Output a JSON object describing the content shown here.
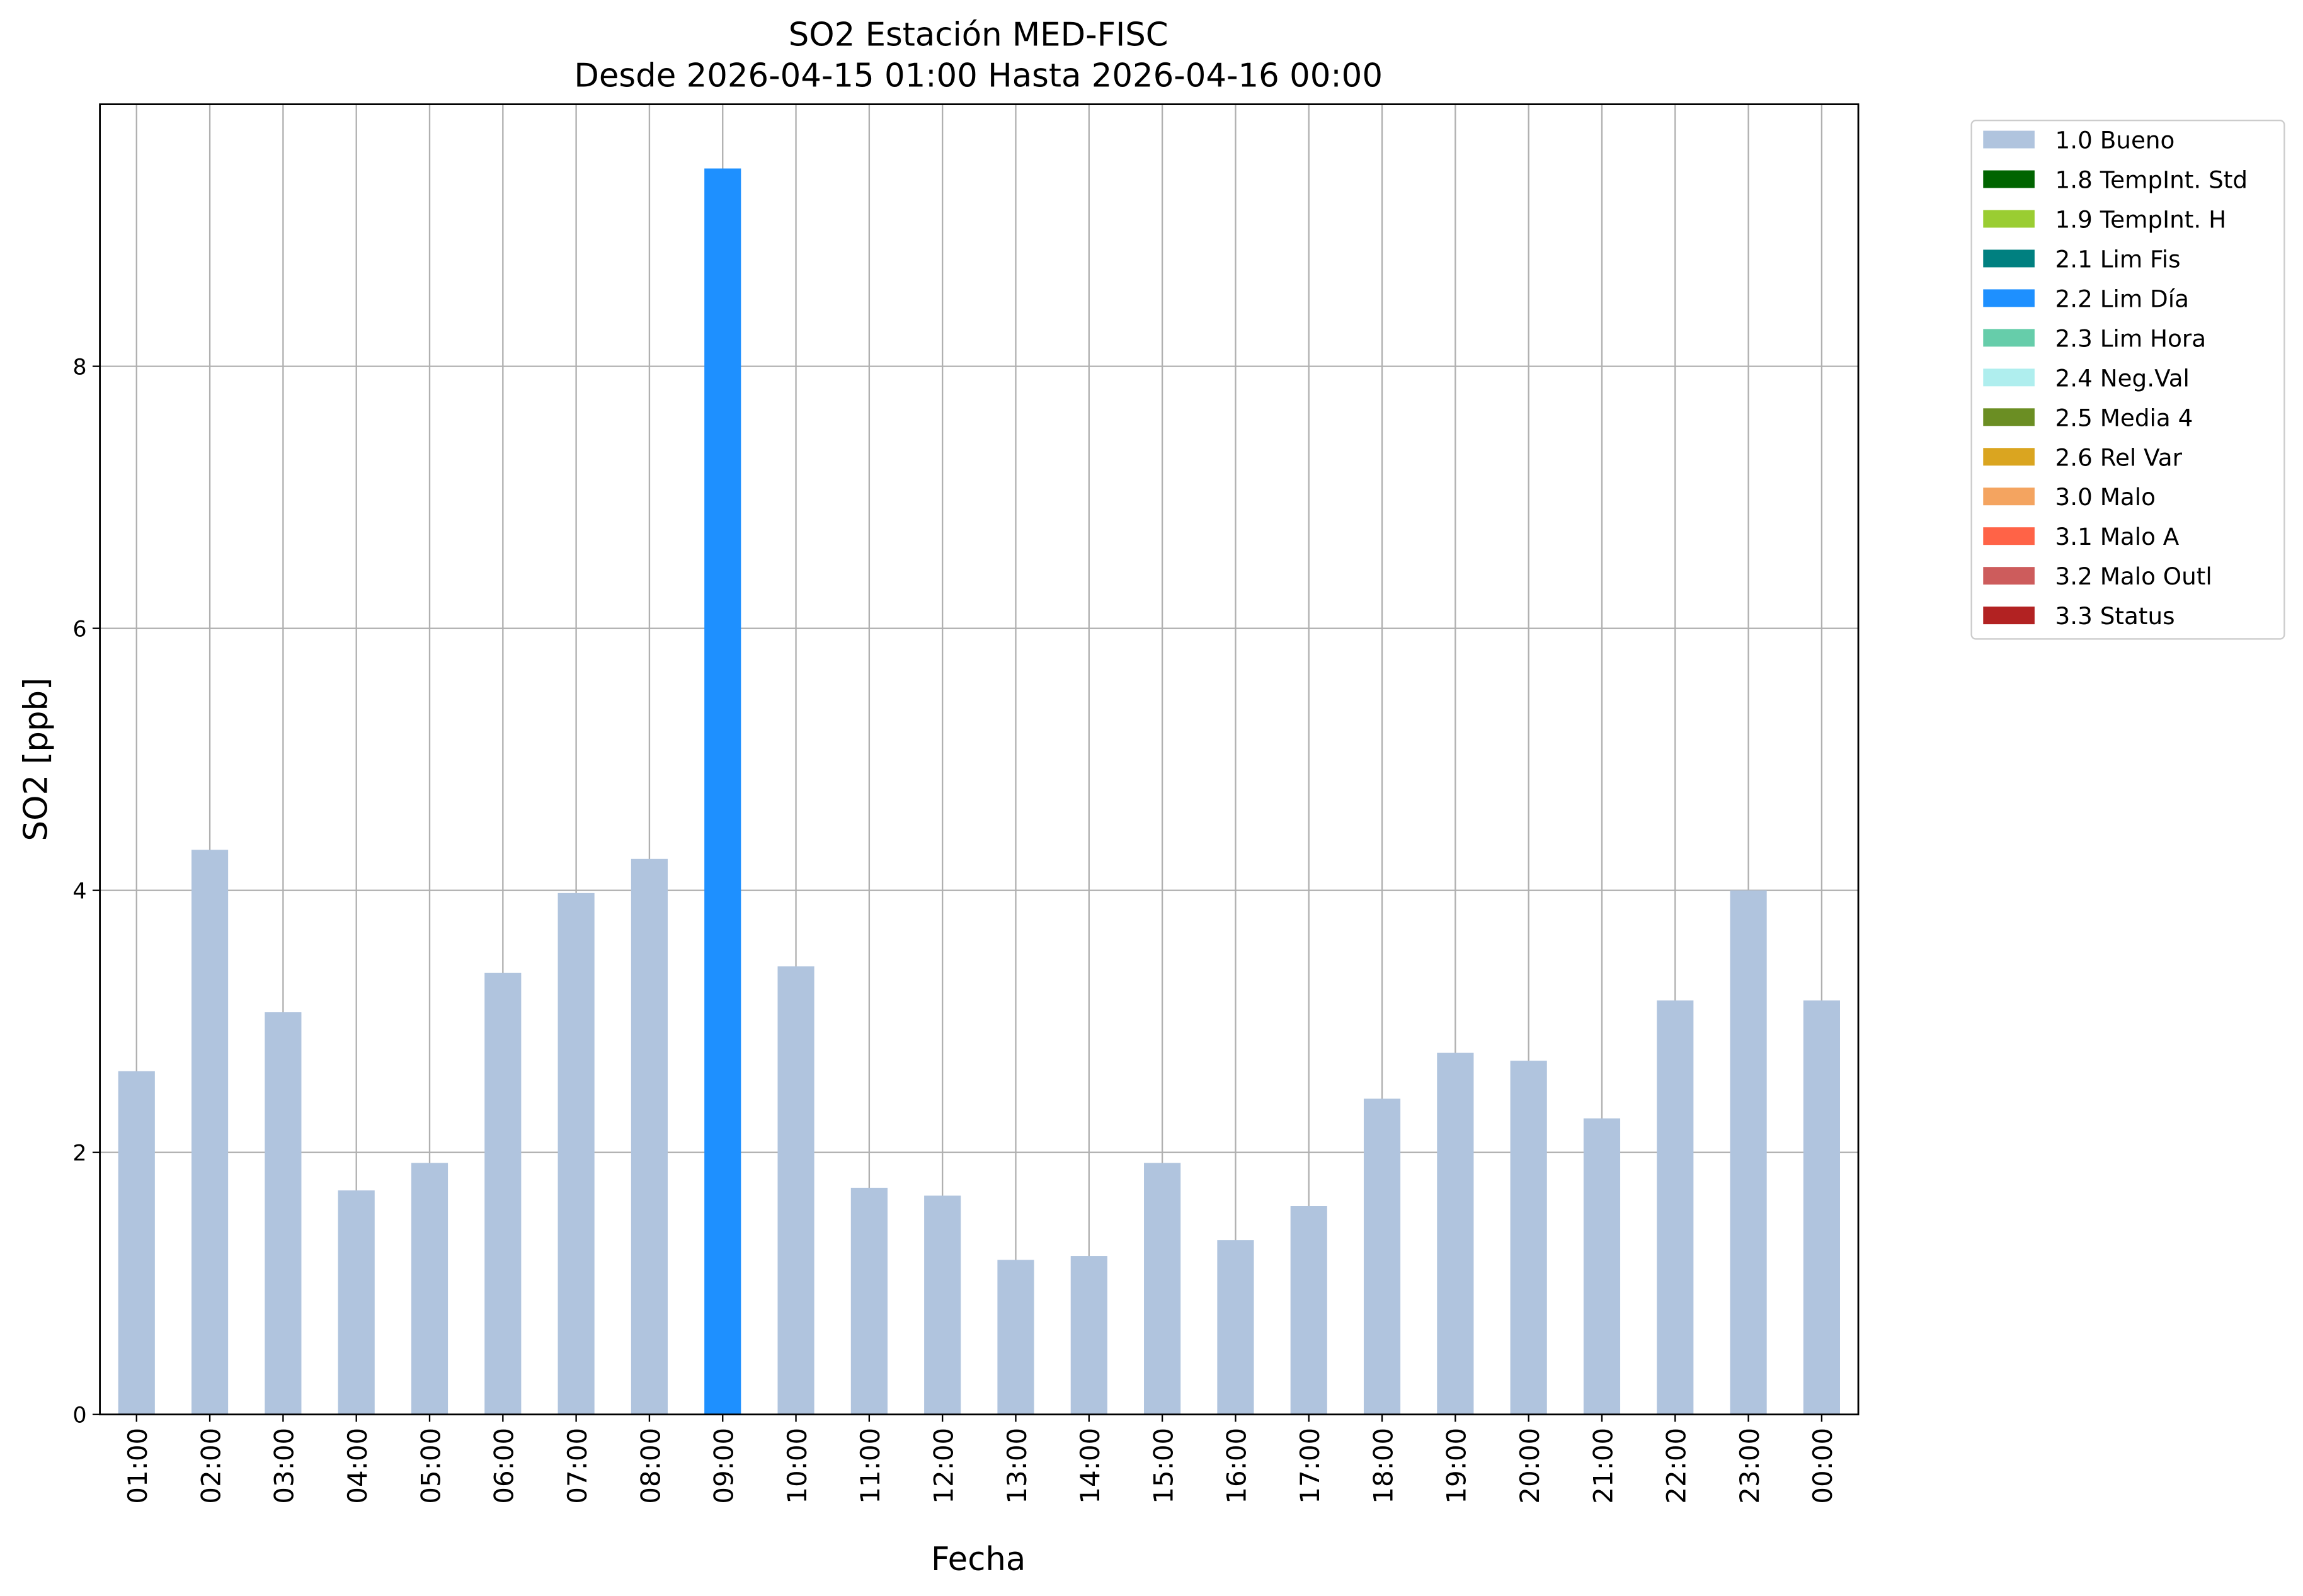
{
  "chart_data": {
    "type": "bar",
    "stacked": true,
    "title": "SO2 Estación MED-FISC",
    "subtitle": "Desde 2026-04-15 01:00 Hasta 2026-04-16 00:00",
    "x_label": "Fecha",
    "y_label": "SO2 [ppb]",
    "categories": [
      "01:00",
      "02:00",
      "03:00",
      "04:00",
      "05:00",
      "06:00",
      "07:00",
      "08:00",
      "09:00",
      "10:00",
      "11:00",
      "12:00",
      "13:00",
      "14:00",
      "15:00",
      "16:00",
      "17:00",
      "18:00",
      "19:00",
      "20:00",
      "21:00",
      "22:00",
      "23:00",
      "00:00"
    ],
    "series": [
      {
        "name": "1.0 Bueno",
        "color": "#b0c4de",
        "values": [
          2.62,
          4.31,
          3.07,
          1.71,
          1.92,
          3.37,
          3.98,
          4.24,
          null,
          3.42,
          1.73,
          1.67,
          1.18,
          1.21,
          1.92,
          1.33,
          1.59,
          2.41,
          2.76,
          2.7,
          2.26,
          3.16,
          4.0,
          3.16
        ]
      },
      {
        "name": "1.8 TempInt. Std",
        "color": "#006400",
        "values": [
          null,
          null,
          null,
          null,
          null,
          null,
          null,
          null,
          null,
          null,
          null,
          null,
          null,
          null,
          null,
          null,
          null,
          null,
          null,
          null,
          null,
          null,
          null,
          null
        ]
      },
      {
        "name": "1.9 TempInt. H",
        "color": "#9acd32",
        "values": [
          null,
          null,
          null,
          null,
          null,
          null,
          null,
          null,
          null,
          null,
          null,
          null,
          null,
          null,
          null,
          null,
          null,
          null,
          null,
          null,
          null,
          null,
          null,
          null
        ]
      },
      {
        "name": "2.1 Lim Fis",
        "color": "#008080",
        "values": [
          null,
          null,
          null,
          null,
          null,
          null,
          null,
          null,
          null,
          null,
          null,
          null,
          null,
          null,
          null,
          null,
          null,
          null,
          null,
          null,
          null,
          null,
          null,
          null
        ]
      },
      {
        "name": "2.2 Lim Día",
        "color": "#1e90ff",
        "values": [
          null,
          null,
          null,
          null,
          null,
          null,
          null,
          null,
          9.51,
          null,
          null,
          null,
          null,
          null,
          null,
          null,
          null,
          null,
          null,
          null,
          null,
          null,
          null,
          null
        ]
      },
      {
        "name": "2.3 Lim Hora",
        "color": "#66cdaa",
        "values": [
          null,
          null,
          null,
          null,
          null,
          null,
          null,
          null,
          null,
          null,
          null,
          null,
          null,
          null,
          null,
          null,
          null,
          null,
          null,
          null,
          null,
          null,
          null,
          null
        ]
      },
      {
        "name": "2.4 Neg.Val",
        "color": "#afeeee",
        "values": [
          null,
          null,
          null,
          null,
          null,
          null,
          null,
          null,
          null,
          null,
          null,
          null,
          null,
          null,
          null,
          null,
          null,
          null,
          null,
          null,
          null,
          null,
          null,
          null
        ]
      },
      {
        "name": "2.5 Media 4",
        "color": "#6b8e23",
        "values": [
          null,
          null,
          null,
          null,
          null,
          null,
          null,
          null,
          null,
          null,
          null,
          null,
          null,
          null,
          null,
          null,
          null,
          null,
          null,
          null,
          null,
          null,
          null,
          null
        ]
      },
      {
        "name": "2.6 Rel Var",
        "color": "#daa520",
        "values": [
          null,
          null,
          null,
          null,
          null,
          null,
          null,
          null,
          null,
          null,
          null,
          null,
          null,
          null,
          null,
          null,
          null,
          null,
          null,
          null,
          null,
          null,
          null,
          null
        ]
      },
      {
        "name": "3.0 Malo",
        "color": "#f4a460",
        "values": [
          null,
          null,
          null,
          null,
          null,
          null,
          null,
          null,
          null,
          null,
          null,
          null,
          null,
          null,
          null,
          null,
          null,
          null,
          null,
          null,
          null,
          null,
          null,
          null
        ]
      },
      {
        "name": "3.1 Malo A",
        "color": "#ff6347",
        "values": [
          null,
          null,
          null,
          null,
          null,
          null,
          null,
          null,
          null,
          null,
          null,
          null,
          null,
          null,
          null,
          null,
          null,
          null,
          null,
          null,
          null,
          null,
          null,
          null
        ]
      },
      {
        "name": "3.2 Malo Outl",
        "color": "#cd5c5c",
        "values": [
          null,
          null,
          null,
          null,
          null,
          null,
          null,
          null,
          null,
          null,
          null,
          null,
          null,
          null,
          null,
          null,
          null,
          null,
          null,
          null,
          null,
          null,
          null,
          null
        ]
      },
      {
        "name": "3.3 Status",
        "color": "#b22222",
        "values": [
          null,
          null,
          null,
          null,
          null,
          null,
          null,
          null,
          null,
          null,
          null,
          null,
          null,
          null,
          null,
          null,
          null,
          null,
          null,
          null,
          null,
          null,
          null,
          null
        ]
      }
    ],
    "ylim": [
      0,
      10
    ],
    "yticks": [
      0,
      2,
      4,
      6,
      8
    ],
    "grid": true,
    "legend": "outside-right"
  }
}
